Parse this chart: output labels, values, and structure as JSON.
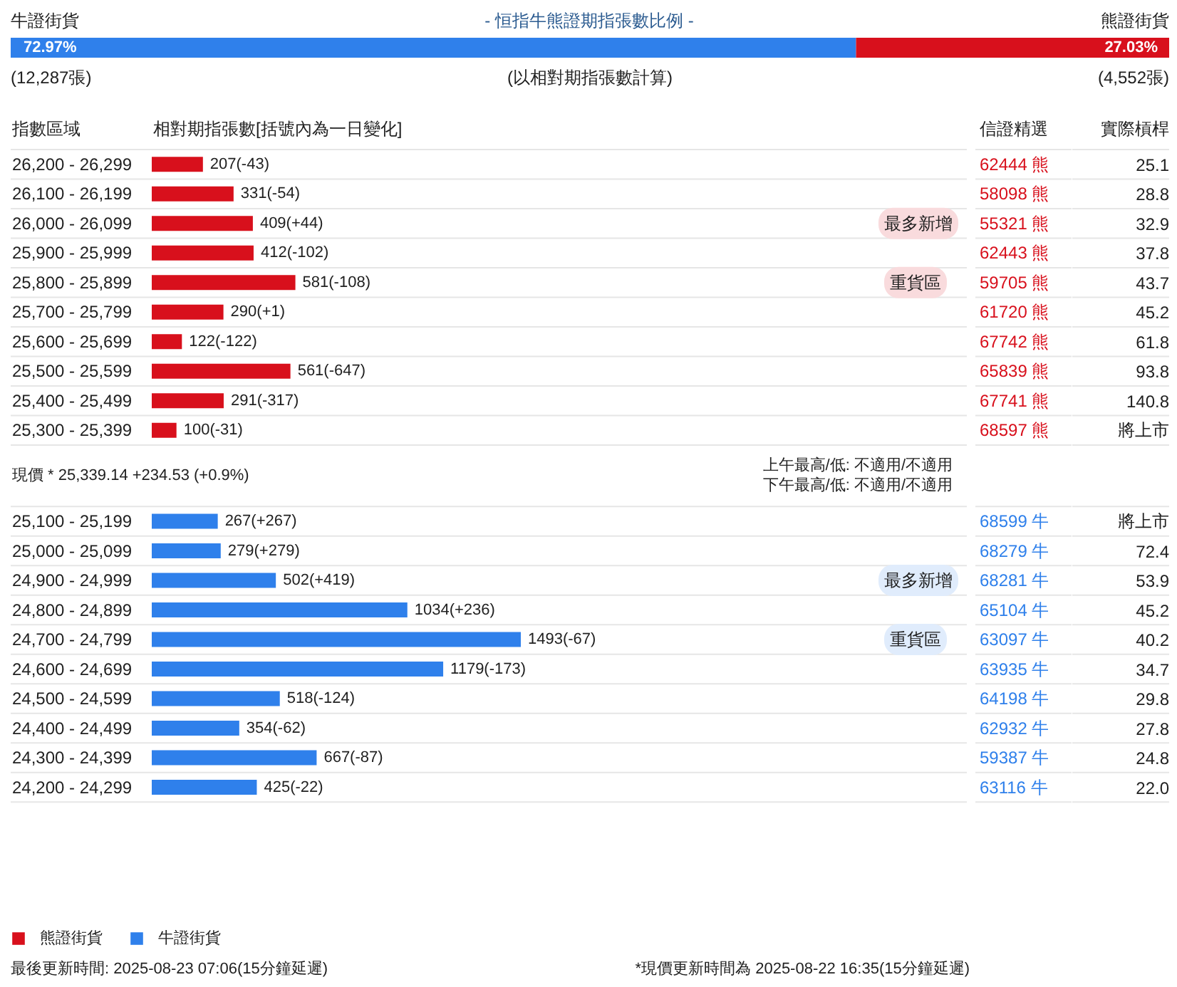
{
  "chart_data": [
    {
      "type": "bar",
      "orientation": "horizontal",
      "stacked": true,
      "title": "- 恒指牛熊證期指張數比例 -",
      "categories": [
        null
      ],
      "series": [
        {
          "name": "牛證街貨",
          "color": "#2f80eb",
          "values": [
            72.97
          ],
          "value_labels": [
            "72.97%"
          ]
        },
        {
          "name": "熊證街貨",
          "color": "#d8101c",
          "values": [
            27.03
          ],
          "value_labels": [
            "27.03%"
          ]
        }
      ],
      "tick_labels": false,
      "annotations": [
        "(12,287張)",
        "(以相對期指張數計算)",
        "(4,552張)"
      ]
    },
    {
      "type": "bar",
      "orientation": "horizontal",
      "stacked": true,
      "ylabel": "指數區域",
      "xlabel": "相對期指張數[括號內為一日變化]",
      "categories": [
        "26,200 - 26,299",
        "26,100 - 26,199",
        "26,000 - 26,099",
        "25,900 - 25,999",
        "25,800 - 25,899",
        "25,700 - 25,799",
        "25,600 - 25,699",
        "25,500 - 25,599",
        "25,400 - 25,499",
        "25,300 - 25,399",
        null,
        "25,100 - 25,199",
        "25,000 - 25,099",
        "24,900 - 24,999",
        "24,800 - 24,899",
        "24,700 - 24,799",
        "24,600 - 24,699",
        "24,500 - 24,599",
        "24,400 - 24,499",
        "24,300 - 24,399",
        "24,200 - 24,299"
      ],
      "series": [
        {
          "name": "熊證街貨",
          "color": "#d8101c",
          "values": [
            207,
            331,
            409,
            412,
            581,
            290,
            122,
            561,
            291,
            100,
            null,
            null,
            null,
            null,
            null,
            null,
            null,
            null,
            null,
            null,
            null
          ],
          "value_labels": [
            "207(-43)",
            "331(-54)",
            "409(+44)",
            "412(-102)",
            "581(-108)",
            "290(+1)",
            "122(-122)",
            "561(-647)",
            "291(-317)",
            "100(-31)",
            null,
            null,
            null,
            null,
            null,
            null,
            null,
            null,
            null,
            null,
            null
          ]
        },
        {
          "name": "牛證街貨",
          "color": "#2f80eb",
          "values": [
            null,
            null,
            null,
            null,
            null,
            null,
            null,
            null,
            null,
            null,
            null,
            267,
            279,
            502,
            1034,
            1493,
            1179,
            518,
            354,
            667,
            425
          ],
          "value_labels": [
            null,
            null,
            null,
            null,
            null,
            null,
            null,
            null,
            null,
            null,
            null,
            "267(+267)",
            "279(+279)",
            "502(+419)",
            "1034(+236)",
            "1493(-67)",
            "1179(-173)",
            "518(-124)",
            "354(-62)",
            "667(-87)",
            "425(-22)"
          ]
        }
      ],
      "legend": "bottom left",
      "tick_labels": "y",
      "annotations": [
        "現價 * 25,339.14 +234.53 (+0.9%)",
        "上午最高/低: 不適用/不適用",
        "下午最高/低: 不適用/不適用",
        "最多新增",
        "重貨區",
        "最多新增",
        "重貨區",
        "最後更新時間: 2025-08-23 07:06(15分鐘延遲)",
        "*現價更新時間為 2025-08-22 16:35(15分鐘延遲)"
      ]
    },
    {
      "type": "other",
      "title": "信證精選",
      "categories": [
        "62444 熊",
        "58098 熊",
        "55321 熊",
        "62443 熊",
        "59705 熊",
        "61720 熊",
        "67742 熊",
        "65839 熊",
        "67741 熊",
        "68597 熊",
        null,
        "68599 牛",
        "68279 牛",
        "68281 牛",
        "65104 牛",
        "63097 牛",
        "63935 牛",
        "64198 牛",
        "62932 牛",
        "59387 牛",
        "63116 牛"
      ]
    },
    {
      "type": "other",
      "title": "實際槓桿",
      "categories": [
        "25.1",
        "28.8",
        "32.9",
        "37.8",
        "43.7",
        "45.2",
        "61.8",
        "93.8",
        "140.8",
        "將上市",
        null,
        "將上市",
        "72.4",
        "53.9",
        "45.2",
        "40.2",
        "34.7",
        "29.8",
        "27.8",
        "24.8",
        "22.0"
      ]
    }
  ]
}
